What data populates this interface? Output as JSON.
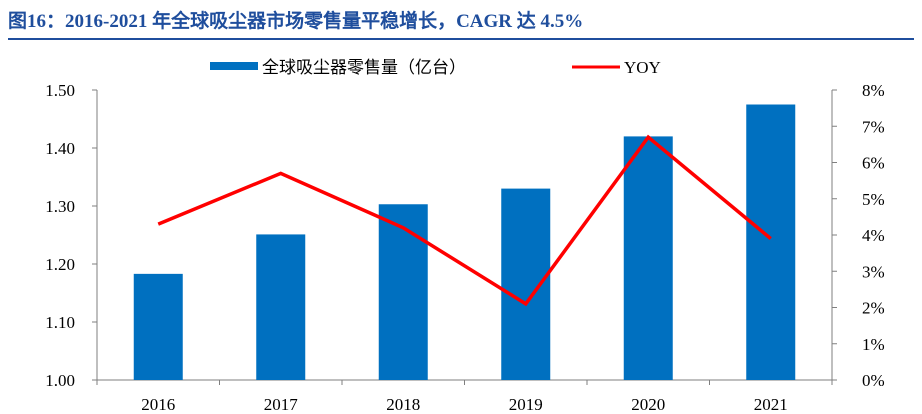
{
  "title": "图16：2016-2021 年全球吸尘器市场零售量平稳增长，CAGR 达 4.5%",
  "colors": {
    "title": "#1f4e9d",
    "bar": "#0070c0",
    "line": "#ff0000",
    "axis": "#7f7f7f"
  },
  "chart_data": {
    "type": "bar",
    "categories": [
      "2016",
      "2017",
      "2018",
      "2019",
      "2020",
      "2021"
    ],
    "series": [
      {
        "name": "全球吸尘器零售量（亿台）",
        "type": "bar",
        "axis": "left",
        "values": [
          1.183,
          1.251,
          1.303,
          1.33,
          1.42,
          1.475
        ]
      },
      {
        "name": "YOY",
        "type": "line",
        "axis": "right",
        "values": [
          4.3,
          5.7,
          4.2,
          2.1,
          6.7,
          3.9
        ]
      }
    ],
    "y_left": {
      "min": 1.0,
      "max": 1.5,
      "ticks": [
        "1.00",
        "1.10",
        "1.20",
        "1.30",
        "1.40",
        "1.50"
      ]
    },
    "y_right": {
      "min": 0,
      "max": 8,
      "ticks": [
        "0%",
        "1%",
        "2%",
        "3%",
        "4%",
        "5%",
        "6%",
        "7%",
        "8%"
      ]
    },
    "legend": "top",
    "grid": false
  }
}
